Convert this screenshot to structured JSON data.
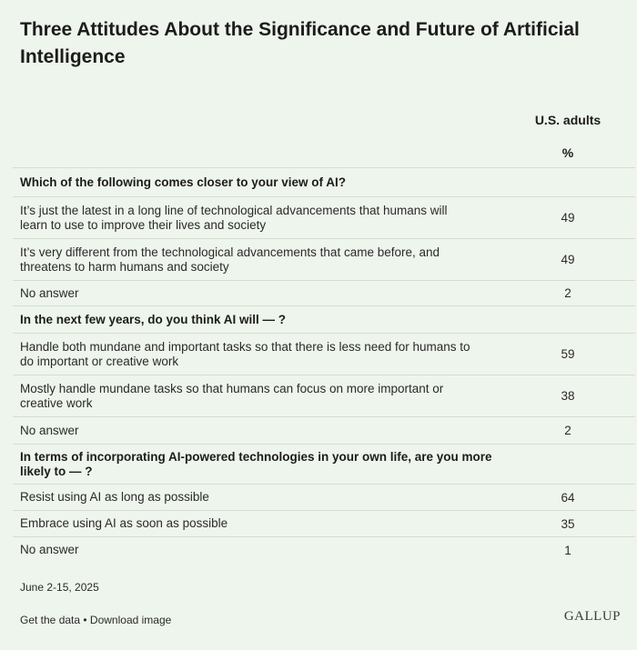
{
  "title": "Three Attitudes About the Significance and Future of Artificial Intelligence",
  "column_header": "U.S. adults",
  "column_unit": "%",
  "chart_data": {
    "type": "table",
    "title": "Three Attitudes About the Significance and Future of Artificial Intelligence",
    "columns": [
      "U.S. adults"
    ],
    "unit": "%",
    "sections": [
      {
        "question": "Which of the following comes closer to your view of AI?",
        "rows": [
          {
            "label": "It’s just the latest in a long line of technological advancements that humans will learn to use to improve their lives and society",
            "value": 49
          },
          {
            "label": "It’s very different from the technological advancements that came before, and threatens to harm humans and society",
            "value": 49
          },
          {
            "label": "No answer",
            "value": 2
          }
        ]
      },
      {
        "question": "In the next few years, do you think AI will — ?",
        "rows": [
          {
            "label": "Handle both mundane and important tasks so that there is less need for humans to do important or creative work",
            "value": 59
          },
          {
            "label": "Mostly handle mundane tasks so that humans can focus on more important or creative work",
            "value": 38
          },
          {
            "label": "No answer",
            "value": 2
          }
        ]
      },
      {
        "question": "In terms of incorporating AI-powered technologies in your own life, are you more likely to — ?",
        "rows": [
          {
            "label": "Resist using AI as long as possible",
            "value": 64
          },
          {
            "label": "Embrace using AI as soon as possible",
            "value": 35
          },
          {
            "label": "No answer",
            "value": 1
          }
        ]
      }
    ]
  },
  "footer": {
    "date": "June 2-15, 2025",
    "get_data": "Get the data",
    "separator": " • ",
    "download": "Download image",
    "logo": "GALLUP"
  }
}
